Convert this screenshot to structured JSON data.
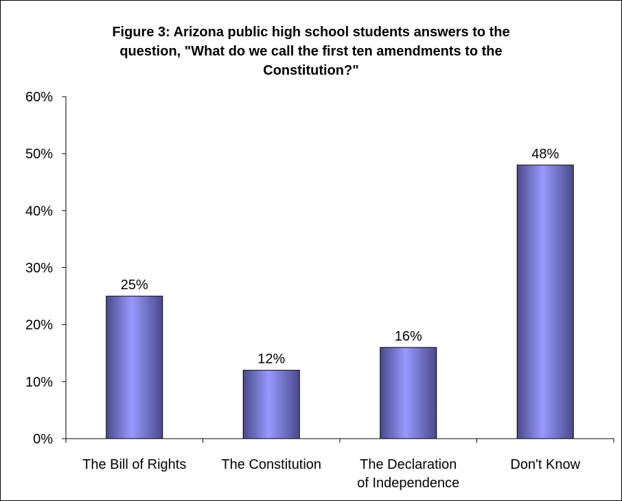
{
  "chart_data": {
    "type": "bar",
    "title_lines": [
      "Figure 3: Arizona public high school students answers to the",
      "question, \"What do we call the first ten amendments to the",
      "Constitution?\""
    ],
    "categories": [
      [
        "The Bill of Rights"
      ],
      [
        "The Constitution"
      ],
      [
        "The Declaration",
        "of Independence"
      ],
      [
        "Don't Know"
      ]
    ],
    "values": [
      25,
      12,
      16,
      48
    ],
    "value_labels": [
      "25%",
      "12%",
      "16%",
      "48%"
    ],
    "y_ticks": [
      0,
      10,
      20,
      30,
      40,
      50,
      60
    ],
    "y_tick_labels": [
      "0%",
      "10%",
      "20%",
      "30%",
      "40%",
      "50%",
      "60%"
    ],
    "ylim": [
      0,
      60
    ],
    "grid": false,
    "legend": "none",
    "colors": {
      "bar_light": "#9999ff",
      "bar_dark": "#4a4a8c",
      "axis": "#000000"
    }
  }
}
